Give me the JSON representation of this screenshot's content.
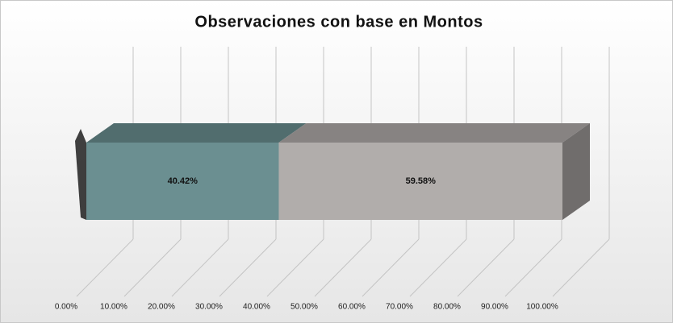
{
  "chart_data": {
    "type": "bar3d_stacked_horizontal",
    "title": "Observaciones con base en Montos",
    "categories": [
      null
    ],
    "series": [
      {
        "color": "#6b8f91",
        "values": [
          40.42
        ],
        "value_labels": [
          "40.42%"
        ]
      },
      {
        "color": "#b1adab",
        "values": [
          59.58
        ],
        "value_labels": [
          "59.58%"
        ]
      }
    ],
    "xlim": [
      0,
      100
    ],
    "xticks": [
      {
        "value": 0,
        "label": "0.00%"
      },
      {
        "value": 10,
        "label": "10.00%"
      },
      {
        "value": 20,
        "label": "20.00%"
      },
      {
        "value": 30,
        "label": "30.00%"
      },
      {
        "value": 40,
        "label": "40.00%"
      },
      {
        "value": 50,
        "label": "50.00%"
      },
      {
        "value": 60,
        "label": "60.00%"
      },
      {
        "value": 70,
        "label": "70.00%"
      },
      {
        "value": 80,
        "label": "80.00%"
      },
      {
        "value": 90,
        "label": "90.00%"
      },
      {
        "value": 100,
        "label": "100.00%"
      }
    ],
    "grid": true
  }
}
